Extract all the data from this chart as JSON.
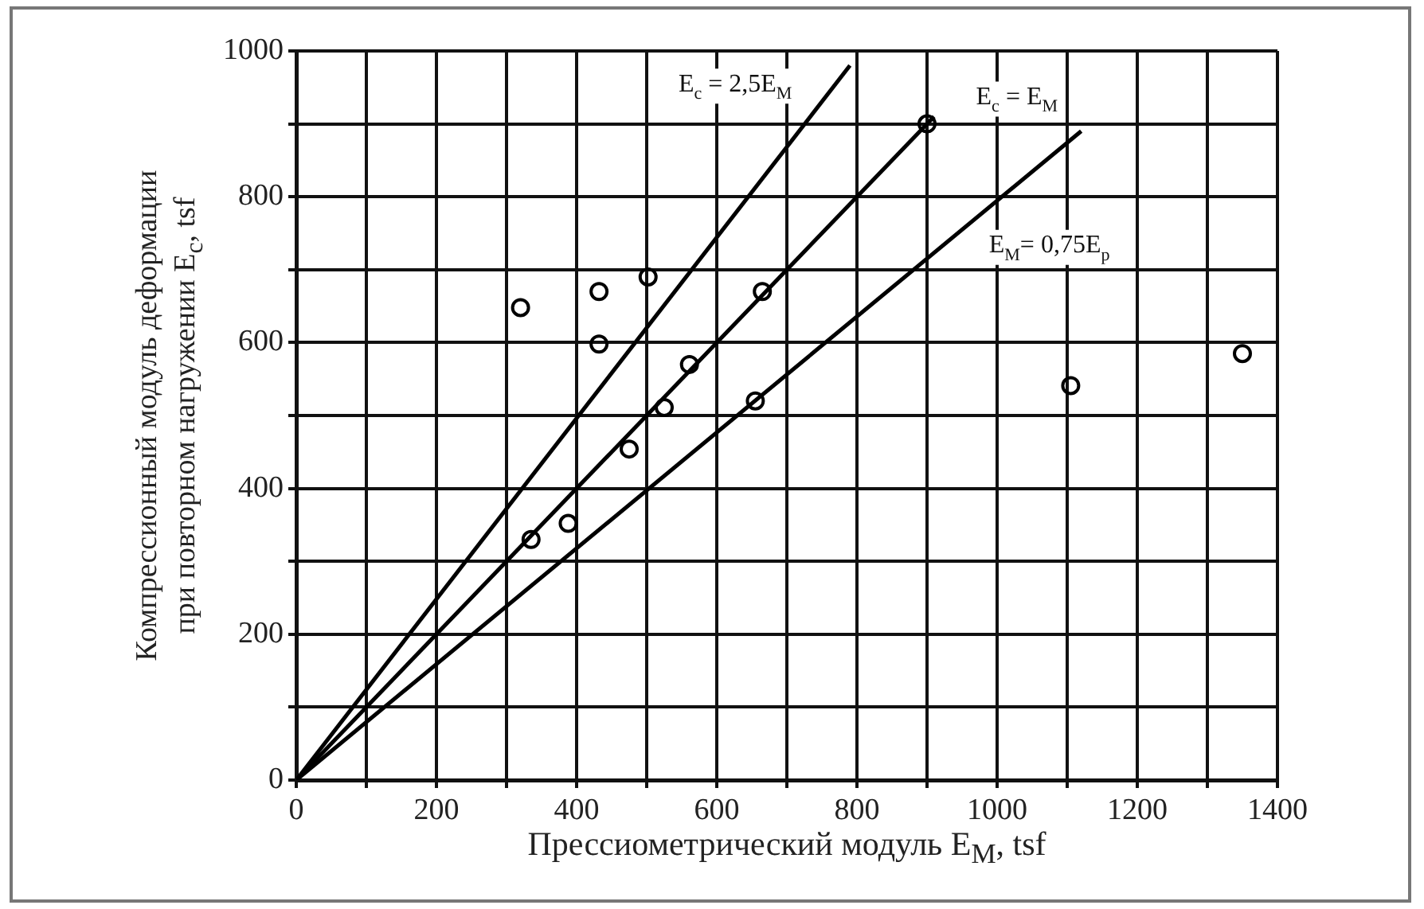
{
  "chart_data": {
    "type": "scatter",
    "xlabel": "Прессиометрический модуль E$_{M}$, tsf",
    "ylabel": "Компрессионный модуль деформации\nпри повторном нагружении E$_{c}$, tsf",
    "xlim": [
      0,
      1400
    ],
    "ylim": [
      0,
      1000
    ],
    "xticks": [
      0,
      {
        "value": 100,
        "label": null
      },
      200,
      {
        "value": 300,
        "label": null
      },
      400,
      {
        "value": 500,
        "label": null
      },
      600,
      {
        "value": 700,
        "label": null
      },
      800,
      {
        "value": 900,
        "label": null
      },
      1000,
      {
        "value": 1100,
        "label": null
      },
      1200,
      {
        "value": 1300,
        "label": null
      },
      1400
    ],
    "yticks": [
      0,
      {
        "value": 100,
        "label": null
      },
      200,
      {
        "value": 300,
        "label": null
      },
      400,
      {
        "value": 500,
        "label": null
      },
      600,
      {
        "value": 700,
        "label": null
      },
      800,
      {
        "value": 900,
        "label": null
      },
      1000
    ],
    "grid": true,
    "legend": false,
    "marker": "circle",
    "series": [
      {
        "color": "#000000",
        "x": [
          320,
          432,
          432,
          388,
          335,
          475,
          525,
          561,
          655,
          665,
          502,
          900,
          1105,
          1350
        ],
        "values": [
          648,
          670,
          598,
          352,
          330,
          454,
          511,
          570,
          520,
          670,
          690,
          900,
          541,
          585
        ]
      },
      {
        "type": "line",
        "marker": "none",
        "color": "#000000",
        "x": [
          0,
          790
        ],
        "values": [
          0,
          980
        ]
      },
      {
        "type": "line",
        "marker": "none",
        "color": "#000000",
        "x": [
          0,
          910
        ],
        "values": [
          0,
          910
        ]
      },
      {
        "type": "line",
        "marker": "none",
        "color": "#000000",
        "x": [
          0,
          1120
        ],
        "values": [
          0,
          890
        ]
      }
    ],
    "annotations": [
      "E$_{c}$ = 2,5E$_{M}$",
      "E$_{c}$ = E$_{M}$",
      "E$_{M}$= 0,75E$_{p}$"
    ]
  }
}
